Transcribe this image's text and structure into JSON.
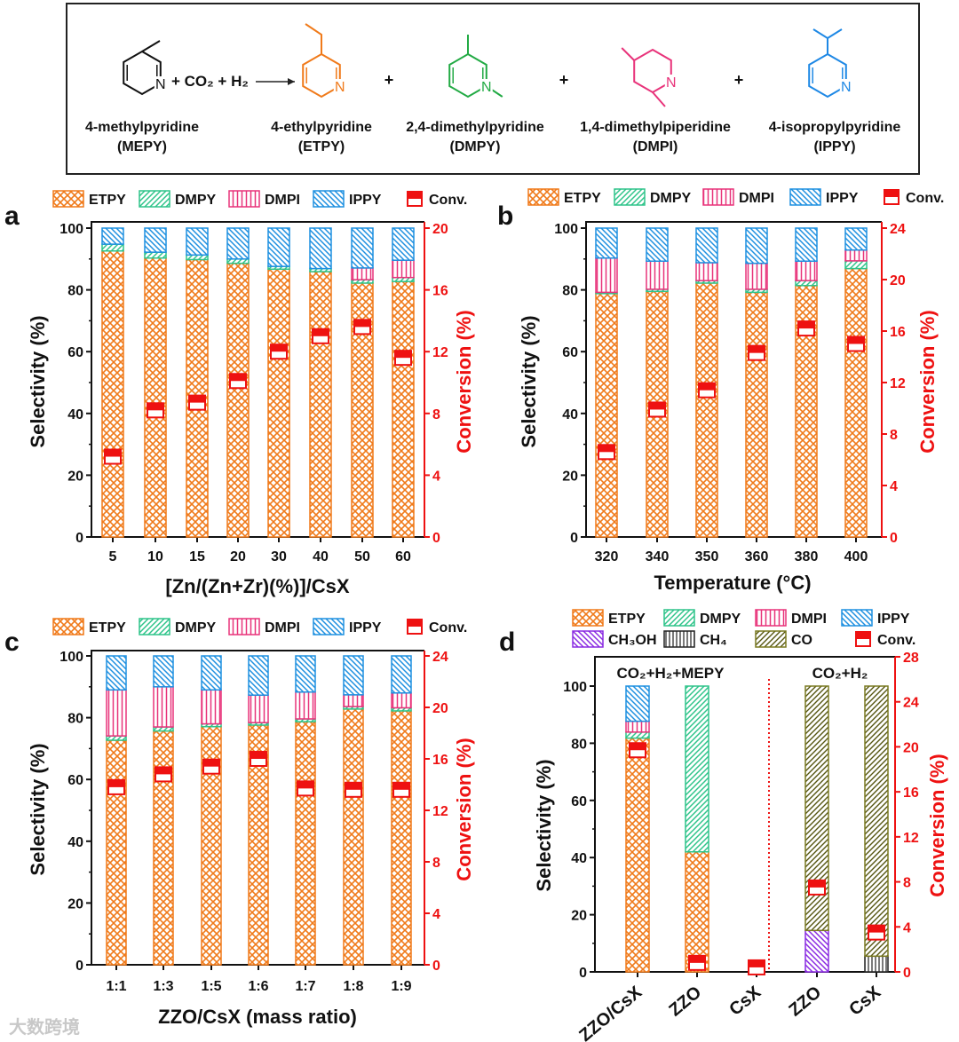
{
  "scheme": {
    "plus_co2_h2": "+ CO₂ + H₂",
    "plus": "+",
    "molecules": [
      {
        "name": "4-methylpyridine",
        "abbr": "(MEPY)",
        "color": "#111111"
      },
      {
        "name": "4-ethylpyridine",
        "abbr": "(ETPY)",
        "color": "#f07a1a"
      },
      {
        "name": "2,4-dimethylpyridine",
        "abbr": "(DMPY)",
        "color": "#22aa44"
      },
      {
        "name": "1,4-dimethylpiperidine",
        "abbr": "(DMPI)",
        "color": "#e8337a"
      },
      {
        "name": "4-isopropylpyridine",
        "abbr": "(IPPY)",
        "color": "#1e88e5"
      }
    ],
    "atom_N": "N"
  },
  "colors": {
    "ETPY": "#f07a1a",
    "DMPY": "#2fc48a",
    "DMPI": "#e8337a",
    "IPPY": "#1e90e0",
    "CH3OH": "#8a2be2",
    "CH4": "#222222",
    "CO": "#7a7a20",
    "Conv": "#ee1111"
  },
  "chart_data": [
    {
      "panel": "a",
      "type": "bar",
      "stacked": true,
      "legend": [
        "ETPY",
        "DMPY",
        "DMPI",
        "IPPY",
        "Conv."
      ],
      "legend_keys": [
        "ETPY",
        "DMPY",
        "DMPI",
        "IPPY",
        "Conv"
      ],
      "xlabel": "[Zn/(Zn+Zr)(%)]/CsX",
      "ylabel": "Selectivity (%)",
      "y2label": "Conversion (%)",
      "ylim": [
        0,
        100
      ],
      "y2lim": [
        0,
        20
      ],
      "yticks": [
        0,
        20,
        40,
        60,
        80,
        100
      ],
      "y2ticks": [
        0,
        4,
        8,
        12,
        16,
        20
      ],
      "categories": [
        "5",
        "10",
        "15",
        "20",
        "30",
        "40",
        "50",
        "60"
      ],
      "series": [
        {
          "name": "ETPY",
          "values": [
            92.6,
            90.3,
            89.8,
            88.6,
            86.7,
            85.9,
            82.2,
            82.7
          ]
        },
        {
          "name": "DMPY",
          "values": [
            2.2,
            1.9,
            1.5,
            1.4,
            0.9,
            1.0,
            1.1,
            1.3
          ]
        },
        {
          "name": "DMPI",
          "values": [
            0,
            0,
            0,
            0,
            0,
            0,
            3.8,
            5.6
          ]
        },
        {
          "name": "IPPY",
          "values": [
            5.2,
            7.8,
            8.7,
            10.0,
            12.4,
            13.1,
            12.9,
            10.4
          ]
        }
      ],
      "conversion": [
        5.2,
        8.2,
        8.7,
        10.1,
        12.0,
        13.0,
        13.6,
        11.6
      ]
    },
    {
      "panel": "b",
      "type": "bar",
      "stacked": true,
      "legend": [
        "ETPY",
        "DMPY",
        "DMPI",
        "IPPY",
        "Conv."
      ],
      "legend_keys": [
        "ETPY",
        "DMPY",
        "DMPI",
        "IPPY",
        "Conv"
      ],
      "xlabel": "Temperature (°C)",
      "ylabel": "Selectivity (%)",
      "y2label": "Conversion (%)",
      "ylim": [
        0,
        100
      ],
      "y2lim": [
        0,
        24
      ],
      "yticks": [
        0,
        20,
        40,
        60,
        80,
        100
      ],
      "y2ticks": [
        0,
        4,
        8,
        12,
        16,
        20,
        24
      ],
      "categories": [
        "320",
        "340",
        "350",
        "360",
        "380",
        "400"
      ],
      "series": [
        {
          "name": "ETPY",
          "values": [
            78.8,
            79.5,
            82.2,
            79.2,
            81.4,
            86.9
          ]
        },
        {
          "name": "DMPY",
          "values": [
            0.4,
            0.7,
            0.8,
            1.0,
            1.6,
            2.5
          ]
        },
        {
          "name": "DMPI",
          "values": [
            11.1,
            9.1,
            5.8,
            8.4,
            6.3,
            3.5
          ]
        },
        {
          "name": "IPPY",
          "values": [
            9.7,
            10.7,
            11.2,
            11.4,
            10.7,
            7.1
          ]
        }
      ],
      "conversion": [
        6.6,
        9.9,
        11.4,
        14.3,
        16.2,
        15.0
      ]
    },
    {
      "panel": "c",
      "type": "bar",
      "stacked": true,
      "legend": [
        "ETPY",
        "DMPY",
        "DMPI",
        "IPPY",
        "Conv."
      ],
      "legend_keys": [
        "ETPY",
        "DMPY",
        "DMPI",
        "IPPY",
        "Conv"
      ],
      "xlabel": "ZZO/CsX (mass ratio)",
      "ylabel": "Selectivity (%)",
      "y2label": "Conversion (%)",
      "ylim": [
        0,
        100
      ],
      "y2lim": [
        0,
        24
      ],
      "yticks": [
        0,
        20,
        40,
        60,
        80,
        100
      ],
      "y2ticks": [
        0,
        4,
        8,
        12,
        16,
        20,
        24
      ],
      "categories": [
        "1:1",
        "1:3",
        "1:5",
        "1:6",
        "1:7",
        "1:8",
        "1:9"
      ],
      "series": [
        {
          "name": "ETPY",
          "values": [
            72.7,
            75.7,
            77.1,
            77.6,
            78.7,
            82.8,
            82.2
          ]
        },
        {
          "name": "DMPY",
          "values": [
            1.4,
            1.3,
            0.9,
            0.8,
            0.9,
            0.8,
            1.0
          ]
        },
        {
          "name": "DMPI",
          "values": [
            14.9,
            13.0,
            11.0,
            8.9,
            8.7,
            3.8,
            4.8
          ]
        },
        {
          "name": "IPPY",
          "values": [
            11.0,
            10.0,
            11.0,
            12.7,
            11.7,
            12.6,
            12.0
          ]
        }
      ],
      "conversion": [
        13.8,
        14.8,
        15.4,
        16.0,
        13.7,
        13.6,
        13.6
      ]
    },
    {
      "panel": "d",
      "type": "bar",
      "stacked": true,
      "legend": [
        "ETPY",
        "DMPY",
        "DMPI",
        "IPPY",
        "CH₃OH",
        "CH₄",
        "CO",
        "Conv."
      ],
      "legend_keys": [
        "ETPY",
        "DMPY",
        "DMPI",
        "IPPY",
        "CH3OH",
        "CH4",
        "CO",
        "Conv"
      ],
      "xlabel": "",
      "ylabel": "Selectivity (%)",
      "y2label": "Conversion (%)",
      "ylim": [
        0,
        110
      ],
      "y2lim": [
        0,
        28
      ],
      "yticks": [
        0,
        20,
        40,
        60,
        80,
        100
      ],
      "y2ticks": [
        0,
        4,
        8,
        12,
        16,
        20,
        24,
        28
      ],
      "group_labels": [
        "CO₂+H₂+MEPY",
        "CO₂+H₂"
      ],
      "categories": [
        "ZZO/CsX",
        "ZZO",
        "CsX",
        "ZZO",
        "CsX"
      ],
      "series": [
        {
          "name": "ETPY",
          "values": [
            81.8,
            42.0,
            0,
            0,
            0
          ]
        },
        {
          "name": "DMPY",
          "values": [
            2.1,
            58.0,
            0,
            0,
            0
          ]
        },
        {
          "name": "DMPI",
          "values": [
            3.8,
            0,
            0,
            0,
            0
          ]
        },
        {
          "name": "IPPY",
          "values": [
            12.3,
            0,
            0,
            0,
            0
          ]
        },
        {
          "name": "CH3OH",
          "values": [
            0,
            0,
            0,
            14.5,
            0
          ]
        },
        {
          "name": "CH4",
          "values": [
            0,
            0,
            0,
            0,
            5.5
          ]
        },
        {
          "name": "CO",
          "values": [
            0,
            0,
            0,
            85.5,
            94.5
          ]
        }
      ],
      "conversion": [
        19.7,
        0.8,
        0.4,
        7.5,
        3.5
      ]
    }
  ],
  "watermark": "大数跨境"
}
